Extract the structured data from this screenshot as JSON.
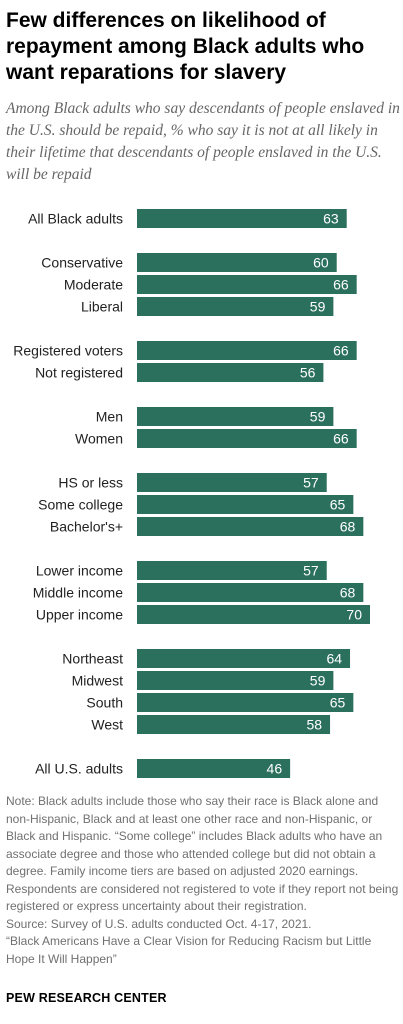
{
  "header": {
    "title": "Few differences on likelihood of repayment among Black adults who want reparations for slavery",
    "subtitle": "Among Black adults who say descendants of people enslaved in the U.S. should be repaid, % who say it is not at all likely in their lifetime that descendants of people enslaved in the U.S. will be repaid"
  },
  "chart_data": {
    "type": "bar",
    "orientation": "horizontal",
    "categories": [
      "All Black adults",
      "Conservative",
      "Moderate",
      "Liberal",
      "Registered voters",
      "Not registered",
      "Men",
      "Women",
      "HS or less",
      "Some college",
      "Bachelor's+",
      "Lower income",
      "Middle income",
      "Upper income",
      "Northeast",
      "Midwest",
      "South",
      "West",
      "All U.S. adults"
    ],
    "values": [
      63,
      60,
      66,
      59,
      66,
      56,
      59,
      66,
      57,
      65,
      68,
      57,
      68,
      70,
      64,
      59,
      65,
      58,
      46
    ],
    "data_labels": [
      "63",
      "60",
      "66",
      "59",
      "66",
      "56",
      "59",
      "66",
      "57",
      "65",
      "68",
      "57",
      "68",
      "70",
      "64",
      "59",
      "65",
      "58",
      "46"
    ],
    "groups": [
      [
        0
      ],
      [
        1,
        2,
        3
      ],
      [
        4,
        5
      ],
      [
        6,
        7
      ],
      [
        8,
        9,
        10
      ],
      [
        11,
        12,
        13
      ],
      [
        14,
        15,
        16,
        17
      ],
      [
        18
      ]
    ],
    "xlim": [
      0,
      70
    ],
    "bar_color": "#2b6f5d",
    "label_color": "#ffffff",
    "grid": false,
    "legend": "none"
  },
  "notes": {
    "note": "Note: Black adults include those who say their race is Black alone and non-Hispanic, Black and at least one other race and non-Hispanic, or Black and Hispanic. “Some college” includes Black adults who have an associate degree and those who attended college but did not obtain a degree. Family income tiers are based on adjusted 2020 earnings. Respondents are considered not registered to vote if they report not being registered or express uncertainty about their registration.",
    "source": "Source: Survey of U.S. adults conducted Oct. 4-17, 2021.",
    "report": "“Black Americans Have a Clear Vision for Reducing Racism but Little Hope It Will Happen”"
  },
  "footer": {
    "org": "PEW RESEARCH CENTER"
  }
}
